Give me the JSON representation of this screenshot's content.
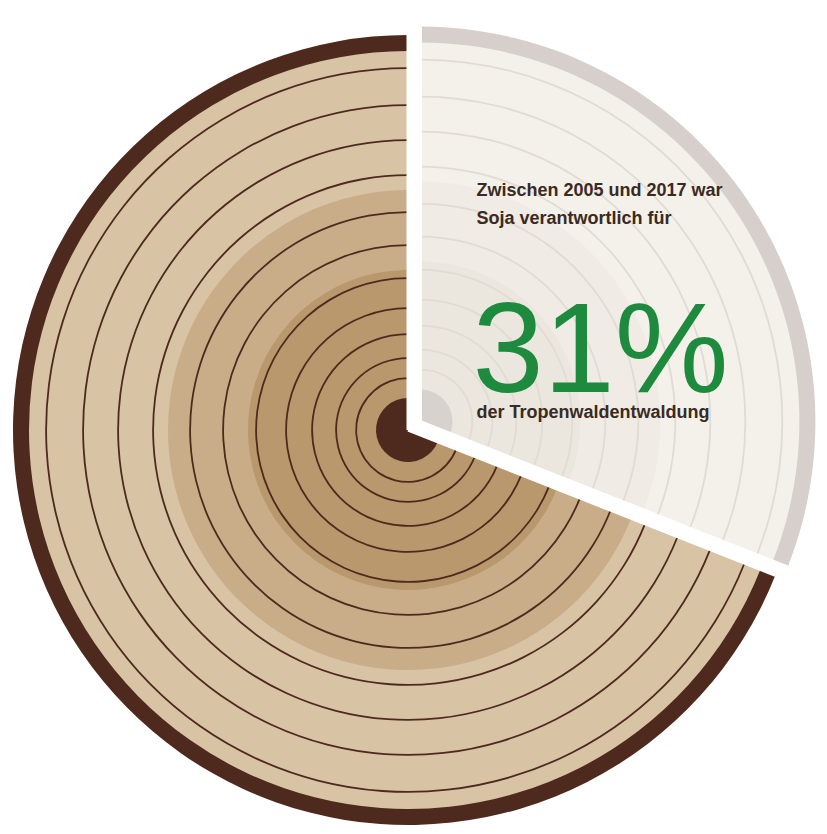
{
  "chart_data": {
    "type": "pie",
    "values": [
      31,
      69
    ],
    "value_labels": [
      "31%",
      null
    ],
    "colors": [
      "#f4f0ea",
      "#d8c3a5"
    ],
    "data_labels": true,
    "annotations": [
      "Zwischen 2005 und 2017 war",
      "Soja verantwortlich für",
      "der Tropenwaldentwaldung"
    ]
  }
}
